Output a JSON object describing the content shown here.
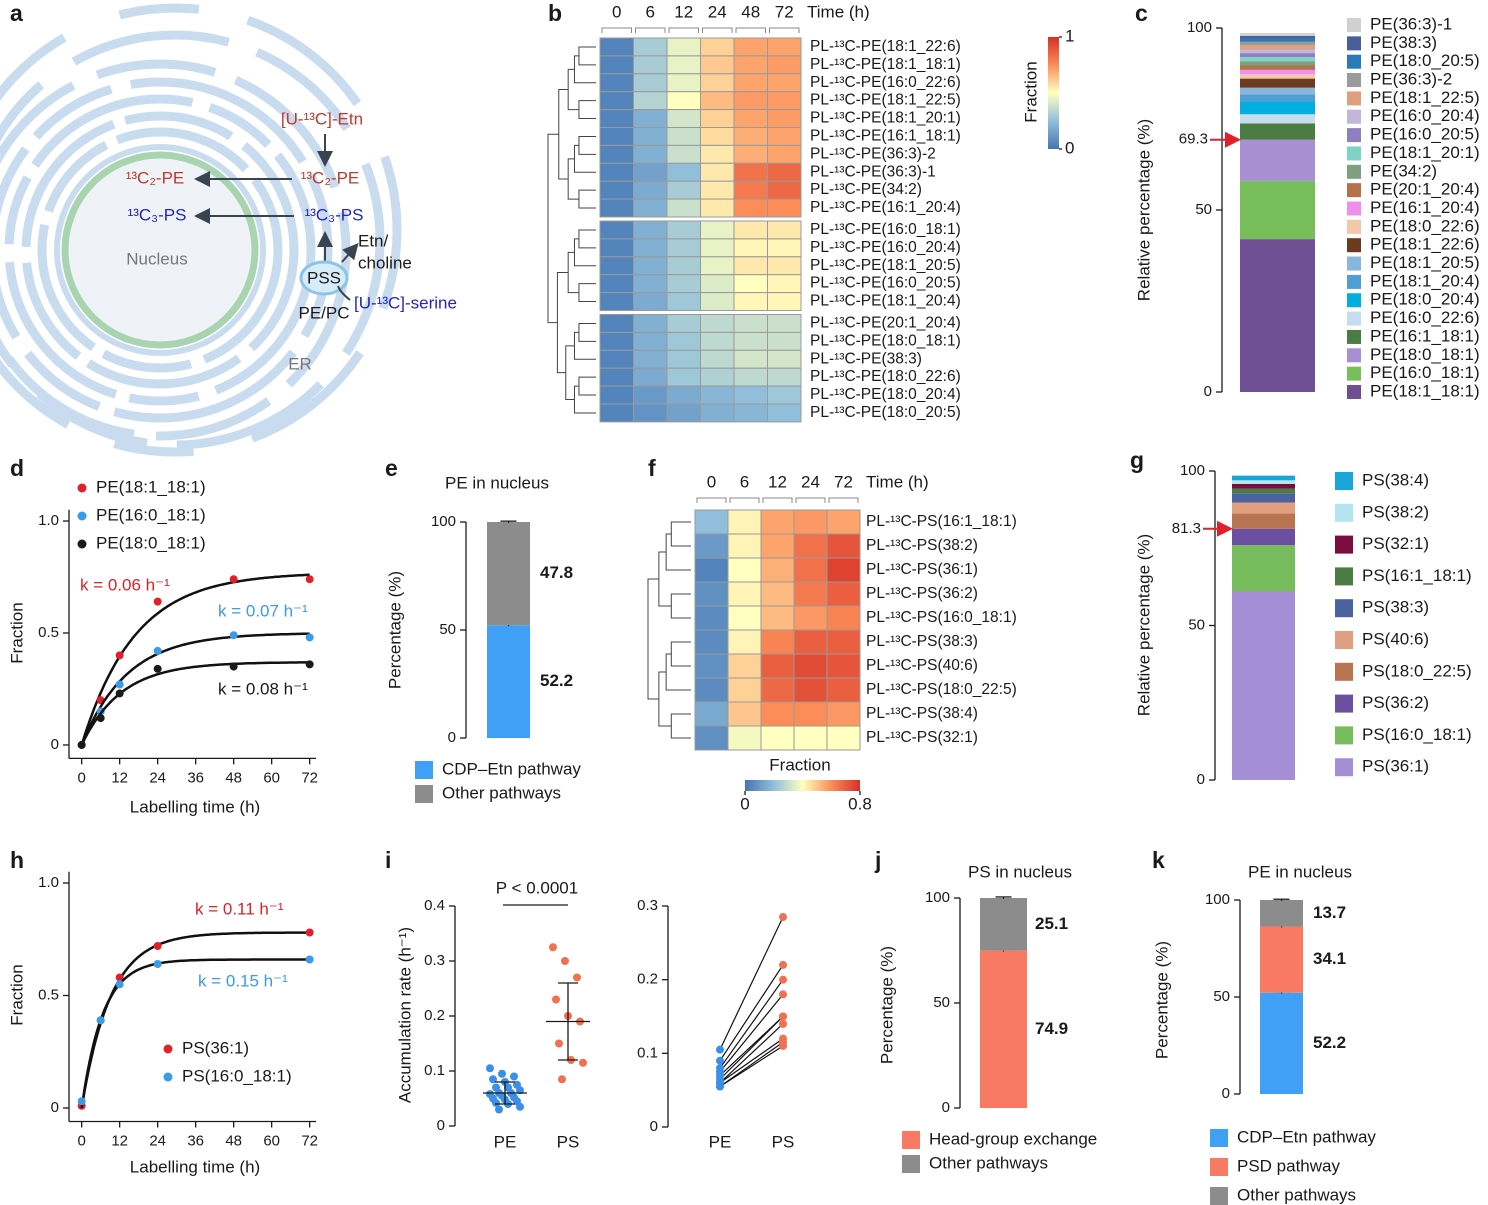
{
  "diagram": {
    "panel": "a",
    "labels": {
      "etn": "[U-¹³C]-Etn",
      "pe_nuc": "¹³C₂-PE",
      "pe_er": "¹³C₂-PE",
      "ps_nuc": "¹³C₃-PS",
      "ps_er": "¹³C₃-PS",
      "etn_choline": [
        "Etn/",
        "choline"
      ],
      "pss": "PSS",
      "pepc": "PE/PC",
      "serine": "[U-¹³C]-serine",
      "nucleus": "Nucleus",
      "er": "ER"
    }
  },
  "chart_data": [
    {
      "type": "heatmap",
      "panel": "b",
      "xlabel": "Time (h)",
      "columns": [
        "0",
        "6",
        "12",
        "24",
        "48",
        "72"
      ],
      "rows": [
        "PL-¹³C-PE(18:1_22:6)",
        "PL-¹³C-PE(18:1_18:1)",
        "PL-¹³C-PE(16:0_22:6)",
        "PL-¹³C-PE(18:1_22:5)",
        "PL-¹³C-PE(18:1_20:1)",
        "PL-¹³C-PE(16:1_18:1)",
        "PL-¹³C-PE(36:3)-2",
        "PL-¹³C-PE(36:3)-1",
        "PL-¹³C-PE(34:2)",
        "PL-¹³C-PE(16:1_20:4)",
        "PL-¹³C-PE(16:0_18:1)",
        "PL-¹³C-PE(16:0_20:4)",
        "PL-¹³C-PE(18:1_20:5)",
        "PL-¹³C-PE(16:0_20:5)",
        "PL-¹³C-PE(18:1_20:4)",
        "PL-¹³C-PE(20:1_20:4)",
        "PL-¹³C-PE(18:0_18:1)",
        "PL-¹³C-PE(38:3)",
        "PL-¹³C-PE(18:0_22:6)",
        "PL-¹³C-PE(18:0_20:4)",
        "PL-¹³C-PE(18:0_20:5)"
      ],
      "values": [
        [
          0.05,
          0.3,
          0.45,
          0.6,
          0.7,
          0.7
        ],
        [
          0.05,
          0.3,
          0.45,
          0.62,
          0.7,
          0.72
        ],
        [
          0.05,
          0.3,
          0.45,
          0.6,
          0.7,
          0.7
        ],
        [
          0.05,
          0.33,
          0.5,
          0.65,
          0.72,
          0.72
        ],
        [
          0.05,
          0.2,
          0.4,
          0.6,
          0.7,
          0.72
        ],
        [
          0.05,
          0.2,
          0.38,
          0.58,
          0.68,
          0.7
        ],
        [
          0.05,
          0.2,
          0.38,
          0.55,
          0.68,
          0.7
        ],
        [
          0.05,
          0.15,
          0.25,
          0.55,
          0.82,
          0.85
        ],
        [
          0.05,
          0.18,
          0.3,
          0.55,
          0.8,
          0.85
        ],
        [
          0.05,
          0.2,
          0.38,
          0.55,
          0.75,
          0.75
        ],
        [
          0.05,
          0.2,
          0.3,
          0.45,
          0.55,
          0.55
        ],
        [
          0.05,
          0.2,
          0.3,
          0.45,
          0.52,
          0.52
        ],
        [
          0.05,
          0.2,
          0.3,
          0.45,
          0.55,
          0.55
        ],
        [
          0.05,
          0.2,
          0.3,
          0.42,
          0.5,
          0.52
        ],
        [
          0.05,
          0.18,
          0.28,
          0.42,
          0.52,
          0.52
        ],
        [
          0.05,
          0.2,
          0.3,
          0.35,
          0.38,
          0.38
        ],
        [
          0.05,
          0.2,
          0.28,
          0.35,
          0.38,
          0.38
        ],
        [
          0.05,
          0.2,
          0.28,
          0.35,
          0.4,
          0.4
        ],
        [
          0.05,
          0.18,
          0.28,
          0.32,
          0.35,
          0.35
        ],
        [
          0.05,
          0.12,
          0.18,
          0.22,
          0.25,
          0.28
        ],
        [
          0.05,
          0.1,
          0.15,
          0.2,
          0.22,
          0.25
        ]
      ],
      "clabel": "Fraction",
      "clim": [
        0,
        1
      ],
      "cticks": [
        0,
        1
      ]
    },
    {
      "type": "stack",
      "panel": "c",
      "ylabel": "Relative percentage (%)",
      "ylim": [
        0,
        100
      ],
      "yticks": [
        0,
        50,
        100
      ],
      "marker": 69.3,
      "series": [
        {
          "name": "PE(18:1_18:1)",
          "color": "#6f4f93",
          "value": 42
        },
        {
          "name": "PE(16:0_18:1)",
          "color": "#78bf5c",
          "value": 16
        },
        {
          "name": "PE(18:0_18:1)",
          "color": "#a88fd4",
          "value": 11.3
        },
        {
          "name": "PE(16:1_18:1)",
          "color": "#4a7c43",
          "value": 4.5
        },
        {
          "name": "PE(16:0_22:6)",
          "color": "#c6dcef",
          "value": 2.5
        },
        {
          "name": "PE(18:0_20:4)",
          "color": "#00aee0",
          "value": 3.5
        },
        {
          "name": "PE(18:1_20:4)",
          "color": "#4f9fd5",
          "value": 2
        },
        {
          "name": "PE(18:1_20:5)",
          "color": "#8ab5dc",
          "value": 1.8
        },
        {
          "name": "PE(18:1_22:6)",
          "color": "#6b3a1f",
          "value": 2.5
        },
        {
          "name": "PE(18:0_22:6)",
          "color": "#f3c7a8",
          "value": 1.2
        },
        {
          "name": "PE(16:1_20:4)",
          "color": "#f08ef0",
          "value": 1.2
        },
        {
          "name": "PE(20:1_20:4)",
          "color": "#b5714a",
          "value": 1.2
        },
        {
          "name": "PE(34:2)",
          "color": "#7fa07f",
          "value": 1.1
        },
        {
          "name": "PE(18:1_20:1)",
          "color": "#7fd3c3",
          "value": 1.2
        },
        {
          "name": "PE(16:0_20:5)",
          "color": "#8f7fbf",
          "value": 1.1
        },
        {
          "name": "PE(16:0_20:4)",
          "color": "#c2b5d9",
          "value": 1
        },
        {
          "name": "PE(18:1_22:5)",
          "color": "#e0a080",
          "value": 1.2
        },
        {
          "name": "PE(36:3)-2",
          "color": "#9a9a9a",
          "value": 0.9
        },
        {
          "name": "PE(18:0_20:5)",
          "color": "#2a7ab9",
          "value": 0.8
        },
        {
          "name": "PE(38:3)",
          "color": "#4a5f9a",
          "value": 0.8
        },
        {
          "name": "PE(36:3)-1",
          "color": "#d0d0d0",
          "value": 0.8
        }
      ]
    },
    {
      "type": "line",
      "panel": "d",
      "xlabel": "Labelling time (h)",
      "ylabel": "Fraction",
      "xlim": [
        -4,
        74
      ],
      "xticks": [
        0,
        12,
        24,
        36,
        48,
        60,
        72
      ],
      "ylim": [
        -0.06,
        1.05
      ],
      "yticks": [
        0,
        0.5,
        {
          "value": 1,
          "label": "1.0"
        }
      ],
      "legend": "upper left",
      "series": [
        {
          "name": "PE(18:1_18:1)",
          "color": "#e0202a",
          "x": [
            0,
            6,
            12,
            24,
            48,
            72
          ],
          "values": [
            0,
            0.2,
            0.4,
            0.64,
            0.74,
            0.74
          ],
          "k": 0.06,
          "plateau": 0.77,
          "k_label": "k = 0.06 h⁻¹"
        },
        {
          "name": "PE(16:0_18:1)",
          "color": "#3a9be8",
          "x": [
            0,
            6,
            12,
            24,
            48,
            72
          ],
          "values": [
            0,
            0.15,
            0.27,
            0.42,
            0.49,
            0.48
          ],
          "k": 0.07,
          "plateau": 0.5,
          "k_label": "k = 0.07 h⁻¹"
        },
        {
          "name": "PE(18:0_18:1)",
          "color": "#1a1a1a",
          "x": [
            0,
            6,
            12,
            24,
            48,
            72
          ],
          "values": [
            0,
            0.12,
            0.23,
            0.34,
            0.35,
            0.36
          ],
          "k": 0.08,
          "plateau": 0.37,
          "k_label": "k = 0.08 h⁻¹"
        }
      ]
    },
    {
      "type": "stack",
      "panel": "e",
      "title": "PE in nucleus",
      "ylabel": "Percentage (%)",
      "ylim": [
        0,
        100
      ],
      "yticks": [
        0,
        50,
        100
      ],
      "series": [
        {
          "name": "CDP–Etn pathway",
          "color": "#3fa0f5",
          "value": 52.2,
          "error": 0.4
        },
        {
          "name": "Other pathways",
          "color": "#8c8c8c",
          "value": 47.8,
          "error": 0.4
        }
      ]
    },
    {
      "type": "heatmap",
      "panel": "f",
      "xlabel": "Time (h)",
      "columns": [
        "0",
        "6",
        "12",
        "24",
        "72"
      ],
      "rows": [
        "PL-¹³C-PS(16:1_18:1)",
        "PL-¹³C-PS(38:2)",
        "PL-¹³C-PS(36:1)",
        "PL-¹³C-PS(36:2)",
        "PL-¹³C-PS(16:0_18:1)",
        "PL-¹³C-PS(38:3)",
        "PL-¹³C-PS(40:6)",
        "PL-¹³C-PS(18:0_22:5)",
        "PL-¹³C-PS(38:4)",
        "PL-¹³C-PS(32:1)"
      ],
      "values": [
        [
          0.2,
          0.42,
          0.56,
          0.58,
          0.56
        ],
        [
          0.1,
          0.42,
          0.56,
          0.66,
          0.72
        ],
        [
          0.04,
          0.4,
          0.54,
          0.66,
          0.76
        ],
        [
          0.07,
          0.42,
          0.52,
          0.64,
          0.7
        ],
        [
          0.06,
          0.4,
          0.52,
          0.58,
          0.62
        ],
        [
          0.06,
          0.42,
          0.62,
          0.7,
          0.7
        ],
        [
          0.07,
          0.48,
          0.7,
          0.74,
          0.72
        ],
        [
          0.06,
          0.48,
          0.68,
          0.73,
          0.7
        ],
        [
          0.14,
          0.5,
          0.6,
          0.6,
          0.58
        ],
        [
          0.07,
          0.38,
          0.4,
          0.4,
          0.4
        ]
      ],
      "clabel": "Fraction",
      "clim": [
        0,
        0.8
      ],
      "cticks": [
        0,
        0.8
      ]
    },
    {
      "type": "stack",
      "panel": "g",
      "ylabel": "Relative percentage (%)",
      "ylim": [
        0,
        100
      ],
      "yticks": [
        0,
        50,
        100
      ],
      "marker": 81.3,
      "series": [
        {
          "name": "PS(36:1)",
          "color": "#a48fd6",
          "value": 61
        },
        {
          "name": "PS(16:0_18:1)",
          "color": "#76bb5c",
          "value": 15
        },
        {
          "name": "PS(36:2)",
          "color": "#6a4fa0",
          "value": 5.3
        },
        {
          "name": "PS(18:0_22:5)",
          "color": "#b87350",
          "value": 5
        },
        {
          "name": "PS(40:6)",
          "color": "#e0a080",
          "value": 3.5
        },
        {
          "name": "PS(38:3)",
          "color": "#4a62a0",
          "value": 3
        },
        {
          "name": "PS(16:1_18:1)",
          "color": "#4a7c43",
          "value": 1.5
        },
        {
          "name": "PS(32:1)",
          "color": "#7a0c3e",
          "value": 1.5
        },
        {
          "name": "PS(38:2)",
          "color": "#b3e4f2",
          "value": 1.2
        },
        {
          "name": "PS(38:4)",
          "color": "#1aa5d8",
          "value": 1.5
        }
      ]
    },
    {
      "type": "line",
      "panel": "h",
      "xlabel": "Labelling time (h)",
      "ylabel": "Fraction",
      "xlim": [
        -4,
        74
      ],
      "xticks": [
        0,
        12,
        24,
        36,
        48,
        60,
        72
      ],
      "ylim": [
        -0.06,
        1.05
      ],
      "yticks": [
        0,
        0.5,
        {
          "value": 1,
          "label": "1.0"
        }
      ],
      "legend": "lower center",
      "series": [
        {
          "name": "PS(36:1)",
          "color": "#e0202a",
          "x": [
            0,
            6,
            12,
            24,
            72
          ],
          "values": [
            0.01,
            0.39,
            0.58,
            0.72,
            0.78
          ],
          "k": 0.11,
          "plateau": 0.78,
          "k_label": "k = 0.11 h⁻¹"
        },
        {
          "name": "PS(16:0_18:1)",
          "color": "#3a9be8",
          "x": [
            0,
            6,
            12,
            24,
            72
          ],
          "values": [
            0.03,
            0.39,
            0.55,
            0.64,
            0.66
          ],
          "k": 0.15,
          "plateau": 0.66,
          "k_label": "k = 0.15 h⁻¹"
        }
      ]
    },
    {
      "type": "strip",
      "panel": "i",
      "ylabel": "Accumulation rate (h⁻¹)",
      "annotation": "P < 0.0001",
      "categories": [
        "PE",
        "PS"
      ],
      "colors": [
        "#3a8fe8",
        "#f07050"
      ],
      "ylim": [
        0,
        0.4
      ],
      "yticks": [
        0,
        0.1,
        0.2,
        0.3,
        0.4
      ],
      "values": [
        [
          0.105,
          0.095,
          0.09,
          0.085,
          0.08,
          0.075,
          0.07,
          0.07,
          0.065,
          0.06,
          0.06,
          0.058,
          0.055,
          0.052,
          0.05,
          0.048,
          0.045,
          0.042,
          0.04,
          0.035,
          0.03
        ],
        [
          0.325,
          0.3,
          0.27,
          0.23,
          0.2,
          0.19,
          0.15,
          0.12,
          0.115,
          0.085
        ]
      ],
      "mean": [
        0.06,
        0.19
      ],
      "sd": [
        0.02,
        0.07
      ]
    },
    {
      "type": "paired",
      "categories": [
        "PE",
        "PS"
      ],
      "colors": [
        "#3a8fe8",
        "#f07050"
      ],
      "ylim": [
        0,
        0.3
      ],
      "yticks": [
        0,
        0.1,
        0.2,
        0.3
      ],
      "values": [
        [
          0.105,
          0.09,
          0.08,
          0.075,
          0.07,
          0.065,
          0.06,
          0.06,
          0.055,
          0.055
        ],
        [
          0.285,
          0.22,
          0.2,
          0.18,
          0.15,
          0.15,
          0.14,
          0.12,
          0.115,
          0.11
        ]
      ]
    },
    {
      "type": "stack",
      "panel": "j",
      "title": "PS in nucleus",
      "ylabel": "Percentage (%)",
      "ylim": [
        0,
        100
      ],
      "yticks": [
        0,
        50,
        100
      ],
      "series": [
        {
          "name": "Head-group exchange",
          "color": "#f97a63",
          "value": 74.9,
          "error": 0.4
        },
        {
          "name": "Other pathways",
          "color": "#8c8c8c",
          "value": 25.1,
          "error": 0.5
        }
      ]
    },
    {
      "type": "stack",
      "panel": "k",
      "title": "PE in nucleus",
      "ylabel": "Percentage (%)",
      "ylim": [
        0,
        100
      ],
      "yticks": [
        0,
        50,
        100
      ],
      "series": [
        {
          "name": "CDP–Etn pathway",
          "color": "#3fa0f5",
          "value": 52.2,
          "error": 0.4
        },
        {
          "name": "PSD pathway",
          "color": "#f97a63",
          "value": 34.1,
          "error": 0.4
        },
        {
          "name": "Other pathways",
          "color": "#8c8c8c",
          "value": 13.7,
          "error": 0.4
        }
      ]
    }
  ]
}
